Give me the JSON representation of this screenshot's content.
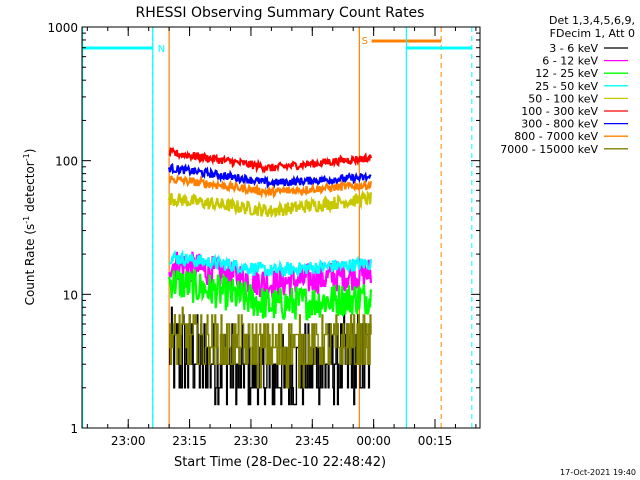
{
  "chart_data": {
    "type": "line",
    "title": "RHESSI Observing Summary Count Rates",
    "xlabel": "Start Time (28-Dec-10 22:48:42)",
    "ylabel": "Count Rate (s",
    "ylabel_sup": "-1",
    "ylabel_mid": " detector",
    "ylabel_sup2": "-1",
    "ylabel_end": ")",
    "y_scale": "log",
    "ylim": [
      1,
      1000
    ],
    "xlim": [
      "22:48:42",
      "00:26:00"
    ],
    "x_ticks": [
      "23:00",
      "23:15",
      "23:30",
      "23:45",
      "00:00",
      "00:15"
    ],
    "y_ticks": [
      "1",
      "10",
      "100",
      "1000"
    ],
    "legend_header": [
      "Det 1,3,4,5,6,9,",
      "FDecim 1, Att 0"
    ],
    "legend_position": "right",
    "footer_timestamp": "17-Oct-2021 19:40",
    "flags": [
      {
        "label": "N",
        "color": "#00ffff",
        "solid_x": [
          "23:06:00"
        ],
        "dashed_x": [
          "23:06:00"
        ],
        "bar_start": "22:48:42",
        "bar_end": "23:06:00"
      },
      {
        "label": "S",
        "color": "#ff8000",
        "solid_x": [
          "23:56:30",
          "23:10:00"
        ],
        "dashed_x": [
          "00:16:30"
        ],
        "bar_start": "23:59:30",
        "bar_end": "00:16:30"
      },
      {
        "label": "",
        "color": "#00ffff",
        "solid_x": [
          "00:08:00",
          "22:48:50"
        ],
        "dashed_x": [
          "00:24:00"
        ],
        "bar_start": "00:08:00",
        "bar_end": "00:24:00"
      }
    ],
    "data_window": [
      "23:10:00",
      "23:59:20"
    ],
    "series": [
      {
        "name": "3 - 6 keV",
        "color": "#000000",
        "start": 3.8,
        "mid": 2.2,
        "end": 3.4,
        "noise": 0.35,
        "steps": true
      },
      {
        "name": "6 - 12 keV",
        "color": "#ff00ff",
        "start": 17,
        "mid": 12,
        "end": 14.5,
        "noise": 0.12
      },
      {
        "name": "12 - 25 keV",
        "color": "#00ff00",
        "start": 12.5,
        "mid": 8.3,
        "end": 9.5,
        "noise": 0.13
      },
      {
        "name": "25 - 50 keV",
        "color": "#00ffff",
        "start": 19,
        "mid": 15,
        "end": 17,
        "noise": 0.05
      },
      {
        "name": "50 - 100 keV",
        "color": "#c8c800",
        "start": 52,
        "mid": 42,
        "end": 52,
        "noise": 0.05
      },
      {
        "name": "100 - 300 keV",
        "color": "#ff0000",
        "start": 115,
        "mid": 88,
        "end": 105,
        "noise": 0.03
      },
      {
        "name": "300 - 800 keV",
        "color": "#0000ff",
        "start": 88,
        "mid": 68,
        "end": 75,
        "noise": 0.03
      },
      {
        "name": "800 - 7000 keV",
        "color": "#ff8000",
        "start": 73,
        "mid": 58,
        "end": 66,
        "noise": 0.03
      },
      {
        "name": "7000 - 15000 keV",
        "color": "#808000",
        "start": 4.8,
        "mid": 3.9,
        "end": 4.2,
        "noise": 0.22,
        "steps": true
      }
    ]
  }
}
